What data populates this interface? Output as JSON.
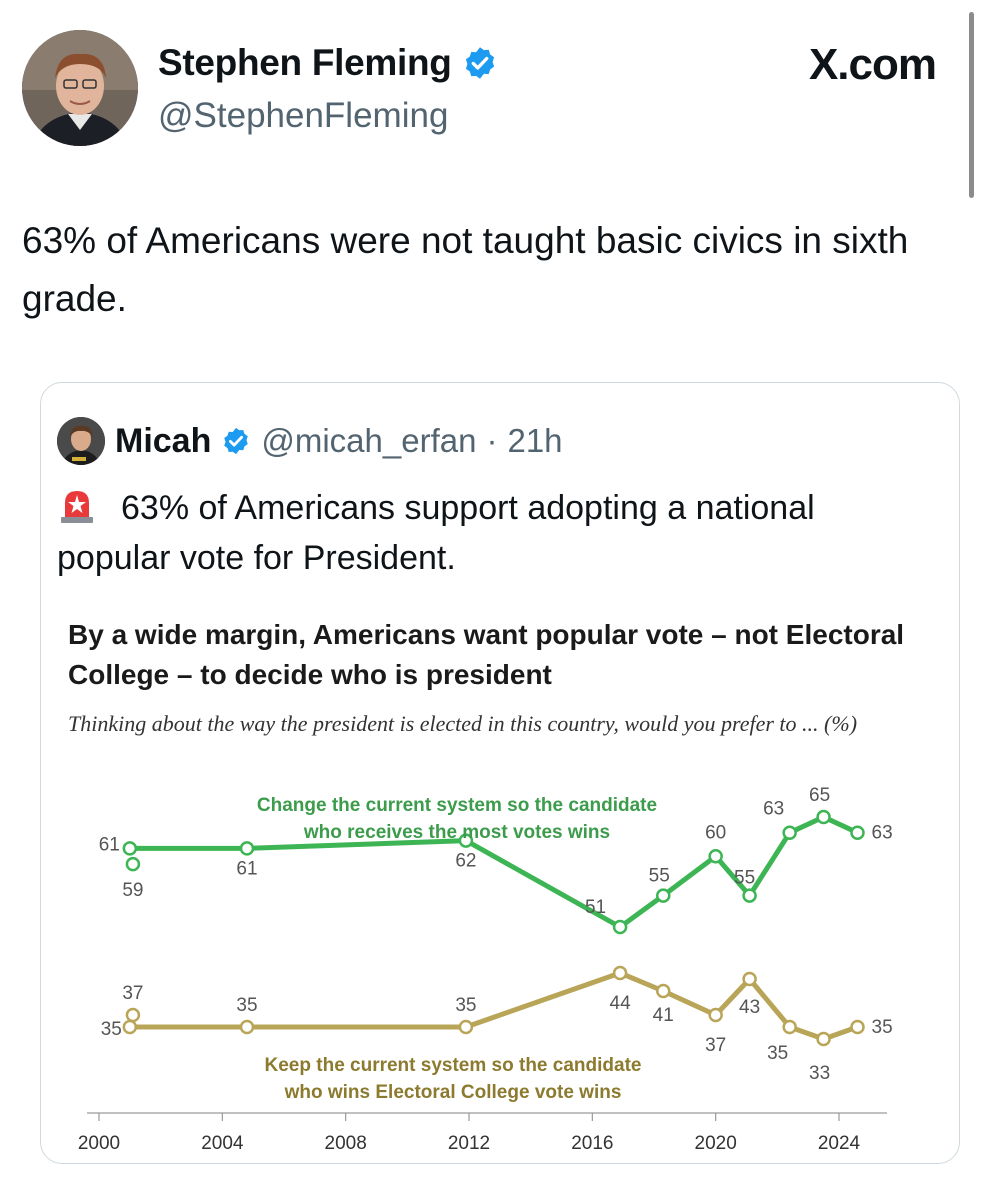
{
  "author": {
    "name": "Stephen Fleming",
    "handle": "@StephenFleming"
  },
  "site": "X.com",
  "tweet": {
    "text": "63% of Americans were not taught basic civics in sixth grade."
  },
  "quote": {
    "name": "Micah",
    "handle": "@micah_erfan",
    "separator": "·",
    "time": "21h",
    "text": "63% of Americans support adopting a national popular vote for President."
  },
  "icons": [
    "verified-badge-icon",
    "siren-emoji-icon"
  ],
  "colors": {
    "verified": "#1d9bf0",
    "green_series": "#3db554",
    "gold_series": "#b9a558",
    "green_label": "#3c9c4c",
    "gold_label": "#8c7a2e"
  },
  "chart_data": {
    "type": "line",
    "title": "By a wide margin, Americans want popular vote – not Electoral College – to decide who is president",
    "subtitle": "Thinking about the way the president is elected in this country, would you prefer to ... (%)",
    "xlim": [
      2000,
      2025
    ],
    "x_ticks": [
      "2000",
      "2004",
      "2008",
      "2012",
      "2016",
      "2020",
      "2024"
    ],
    "series": [
      {
        "name": "Change the current system so the candidate who receives the most votes wins",
        "name_lines": [
          "Change the current system so the candidate",
          "who receives the most votes wins"
        ],
        "points": [
          {
            "x": 2001.0,
            "y": 61,
            "label": "61"
          },
          {
            "x": 2001.1,
            "y": 59,
            "label": "59"
          },
          {
            "x": 2004.8,
            "y": 61,
            "label": "61"
          },
          {
            "x": 2011.9,
            "y": 62,
            "label": "62"
          },
          {
            "x": 2016.9,
            "y": 51,
            "label": "51"
          },
          {
            "x": 2018.3,
            "y": 55,
            "label": "55"
          },
          {
            "x": 2020.0,
            "y": 60,
            "label": "60"
          },
          {
            "x": 2021.1,
            "y": 55,
            "label": "55"
          },
          {
            "x": 2022.4,
            "y": 63,
            "label": "63"
          },
          {
            "x": 2023.5,
            "y": 65,
            "label": "65"
          },
          {
            "x": 2024.6,
            "y": 63,
            "label": "63"
          }
        ]
      },
      {
        "name": "Keep the current system so the candidate who wins Electoral College vote wins",
        "name_lines": [
          "Keep the current system so the candidate",
          "who wins Electoral College vote wins"
        ],
        "points": [
          {
            "x": 2001.0,
            "y": 35,
            "label": "35"
          },
          {
            "x": 2001.1,
            "y": 37,
            "label": "37"
          },
          {
            "x": 2004.8,
            "y": 35,
            "label": "35"
          },
          {
            "x": 2011.9,
            "y": 35,
            "label": "35"
          },
          {
            "x": 2016.9,
            "y": 44,
            "label": "44"
          },
          {
            "x": 2018.3,
            "y": 41,
            "label": "41"
          },
          {
            "x": 2020.0,
            "y": 37,
            "label": "37"
          },
          {
            "x": 2021.1,
            "y": 43,
            "label": "43"
          },
          {
            "x": 2022.4,
            "y": 35,
            "label": "35"
          },
          {
            "x": 2023.5,
            "y": 33,
            "label": "33"
          },
          {
            "x": 2024.6,
            "y": 35,
            "label": "35"
          }
        ]
      }
    ]
  }
}
